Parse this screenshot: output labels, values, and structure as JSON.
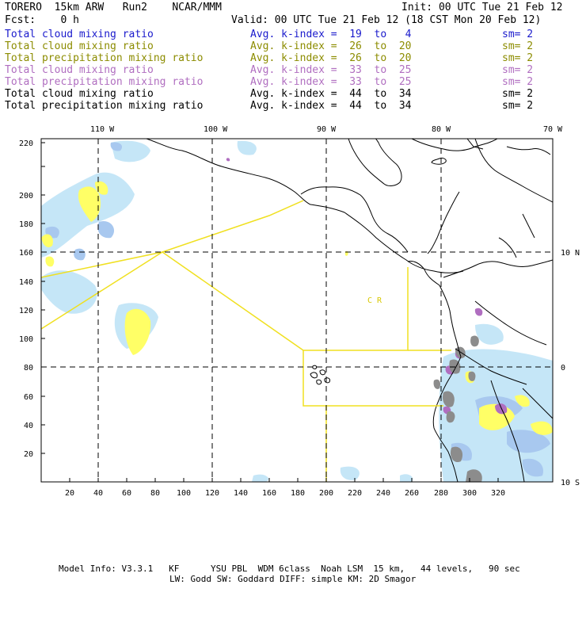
{
  "header": {
    "title": "TORERO  15km ARW   Run2    NCAR/MMM",
    "init": "Init: 00 UTC Tue 21 Feb 12",
    "fcst": "Fcst:    0 h",
    "valid": "Valid: 00 UTC Tue 21 Feb 12 (18 CST Mon 20 Feb 12)"
  },
  "legend": [
    {
      "field": "Total cloud mixing ratio",
      "index": "Avg. k-index =  19  to   4",
      "sm": "sm= 2",
      "color": "#1a1acc"
    },
    {
      "field": "Total cloud mixing ratio",
      "index": "Avg. k-index =  26  to  20",
      "sm": "sm= 2",
      "color": "#8c8c00"
    },
    {
      "field": "Total precipitation mixing ratio",
      "index": "Avg. k-index =  26  to  20",
      "sm": "sm= 2",
      "color": "#8c8c00"
    },
    {
      "field": "Total cloud mixing ratio",
      "index": "Avg. k-index =  33  to  25",
      "sm": "sm= 2",
      "color": "#b06ec0"
    },
    {
      "field": "Total precipitation mixing ratio",
      "index": "Avg. k-index =  33  to  25",
      "sm": "sm= 2",
      "color": "#b06ec0"
    },
    {
      "field": "Total cloud mixing ratio",
      "index": "Avg. k-index =  44  to  34",
      "sm": "sm= 2",
      "color": "#000000"
    },
    {
      "field": "Total precipitation mixing ratio",
      "index": "Avg. k-index =  44  to  34",
      "sm": "sm= 2",
      "color": "#000000"
    }
  ],
  "map": {
    "x_ticks": [
      "20",
      "40",
      "60",
      "80",
      "100",
      "120",
      "140",
      "160",
      "180",
      "200",
      "220",
      "240",
      "260",
      "280",
      "300",
      "320"
    ],
    "y_ticks": [
      "20",
      "40",
      "60",
      "80",
      "100",
      "120",
      "140",
      "160",
      "180",
      "200",
      "220"
    ],
    "lon_labels": [
      "110 W",
      "100 W",
      "90 W",
      "80 W",
      "70 W"
    ],
    "lat_labels": [
      "10 N",
      "0",
      "10 S"
    ],
    "region_letters": "C  R",
    "colors": {
      "cloud_light": "#c5e6f7",
      "cloud_blue": "#a8c8ef",
      "yellow": "#ffff66",
      "purple": "#b06ec0",
      "gray": "#8c8c8c",
      "box": "#f0e020"
    }
  },
  "footer": {
    "line1": "Model Info: V3.3.1   KF      YSU PBL  WDM 6class  Noah LSM  15 km,   44 levels,   90 sec",
    "line2": "LW: Godd SW: Goddard DIFF: simple KM: 2D Smagor"
  }
}
